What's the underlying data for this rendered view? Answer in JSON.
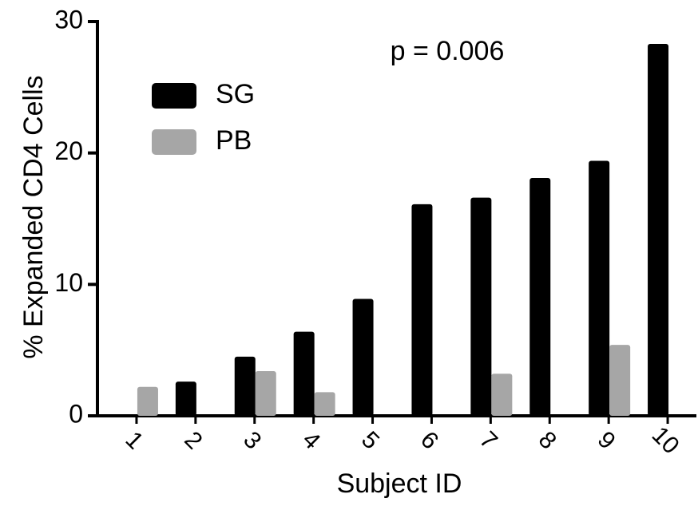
{
  "chart_data": {
    "type": "bar",
    "annotation": "p = 0.006",
    "x_label": "Subject ID",
    "y_label": "% Expanded CD4 Cells",
    "categories": [
      "1",
      "2",
      "3",
      "4",
      "5",
      "6",
      "7",
      "8",
      "9",
      "10"
    ],
    "series": [
      {
        "name": "SG",
        "color": "#000000",
        "values": [
          0,
          2.6,
          4.5,
          6.4,
          8.9,
          16.1,
          16.6,
          18.1,
          19.4,
          28.3
        ]
      },
      {
        "name": "PB",
        "color": "#a6a6a6",
        "values": [
          2.2,
          0,
          3.4,
          1.8,
          0,
          0,
          3.2,
          0,
          5.4,
          0
        ]
      }
    ],
    "ylim": [
      0,
      30
    ],
    "yticks": [
      0,
      10,
      20,
      30
    ]
  }
}
